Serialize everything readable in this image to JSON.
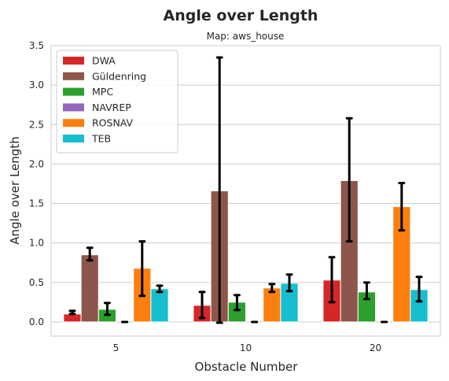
{
  "chart_data": {
    "type": "bar",
    "title": "Angle over Length",
    "subtitle": "Map: aws_house",
    "xlabel": "Obstacle Number",
    "ylabel": "Angle over Length",
    "categories": [
      "5",
      "10",
      "20"
    ],
    "ylim": [
      -0.18,
      3.5
    ],
    "yticks": [
      0.0,
      0.5,
      1.0,
      1.5,
      2.0,
      2.5,
      3.0,
      3.5
    ],
    "ytick_labels": [
      "0.0",
      "0.5",
      "1.0",
      "1.5",
      "2.0",
      "2.5",
      "3.0",
      "3.5"
    ],
    "grid": "horizontal",
    "legend_position": "top-left",
    "series": [
      {
        "name": "DWA",
        "color": "#d62728",
        "values": [
          0.1,
          0.21,
          0.53
        ],
        "err_low": [
          0.1,
          0.05,
          0.25
        ],
        "err_high": [
          0.14,
          0.38,
          0.82
        ]
      },
      {
        "name": "Güldenring",
        "color": "#8c564b",
        "values": [
          0.85,
          1.66,
          1.79
        ],
        "err_low": [
          0.78,
          -0.01,
          1.02
        ],
        "err_high": [
          0.94,
          3.35,
          2.58
        ]
      },
      {
        "name": "MPC",
        "color": "#2ca02c",
        "values": [
          0.16,
          0.25,
          0.38
        ],
        "err_low": [
          0.09,
          0.15,
          0.29
        ],
        "err_high": [
          0.24,
          0.34,
          0.5
        ]
      },
      {
        "name": "NAVREP",
        "color": "#9467bd",
        "values": [
          0.0,
          0.0,
          0.0
        ],
        "err_low": [
          0.0,
          0.0,
          0.0
        ],
        "err_high": [
          0.0,
          0.0,
          0.0
        ]
      },
      {
        "name": "ROSNAV",
        "color": "#ff7f0e",
        "values": [
          0.68,
          0.43,
          1.46
        ],
        "err_low": [
          0.33,
          0.38,
          1.16
        ],
        "err_high": [
          1.02,
          0.48,
          1.76
        ]
      },
      {
        "name": "TEB",
        "color": "#17becf",
        "values": [
          0.42,
          0.49,
          0.41
        ],
        "err_low": [
          0.38,
          0.39,
          0.26
        ],
        "err_high": [
          0.46,
          0.6,
          0.57
        ]
      }
    ]
  }
}
